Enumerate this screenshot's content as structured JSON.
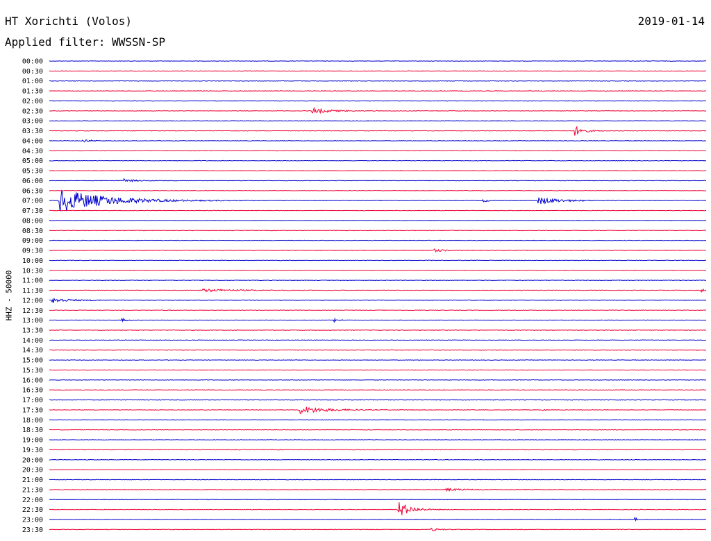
{
  "header": {
    "station": "HT Xorichti (Volos)",
    "date": "2019-01-14",
    "filter": "Applied filter: WWSSN-SP"
  },
  "channel_label": "HHZ - 50000",
  "chart_data": {
    "type": "line",
    "title": "HT Xorichti (Volos)",
    "subtitle": "Applied filter: WWSSN-SP",
    "ylabel": "HHZ - 50000",
    "row_labels": [
      "00:00",
      "00:30",
      "01:00",
      "01:30",
      "02:00",
      "02:30",
      "03:00",
      "03:30",
      "04:00",
      "04:30",
      "05:00",
      "05:30",
      "06:00",
      "06:30",
      "07:00",
      "07:30",
      "08:00",
      "08:30",
      "09:00",
      "09:30",
      "10:00",
      "10:30",
      "11:00",
      "11:30",
      "12:00",
      "12:30",
      "13:00",
      "13:30",
      "14:00",
      "14:30",
      "15:00",
      "15:30",
      "16:00",
      "16:30",
      "17:00",
      "17:30",
      "18:00",
      "18:30",
      "19:00",
      "19:30",
      "20:00",
      "20:30",
      "21:00",
      "21:30",
      "22:00",
      "22:30",
      "23:00",
      "23:30"
    ],
    "x_range_minutes": [
      0,
      30
    ],
    "series_colors": [
      "#0000cc",
      "#ee0033"
    ],
    "events": [
      {
        "row": "02:30",
        "t": 12.0,
        "amp": 0.55,
        "dur": 1.2
      },
      {
        "row": "03:30",
        "t": 24.0,
        "amp": 0.9,
        "dur": 0.6
      },
      {
        "row": "04:00",
        "t": 1.5,
        "amp": 0.4,
        "dur": 0.5
      },
      {
        "row": "06:00",
        "t": 3.4,
        "amp": 0.3,
        "dur": 0.8
      },
      {
        "row": "07:00",
        "t": 0.4,
        "amp": 2.3,
        "dur": 3.2
      },
      {
        "row": "07:00",
        "t": 22.3,
        "amp": 0.7,
        "dur": 1.5
      },
      {
        "row": "07:00",
        "t": 19.8,
        "amp": 0.35,
        "dur": 0.3
      },
      {
        "row": "09:30",
        "t": 17.5,
        "amp": 0.3,
        "dur": 0.8
      },
      {
        "row": "11:30",
        "t": 7.0,
        "amp": 0.25,
        "dur": 2.5
      },
      {
        "row": "11:30",
        "t": 29.7,
        "amp": 0.45,
        "dur": 0.3
      },
      {
        "row": "12:00",
        "t": 0.1,
        "amp": 0.5,
        "dur": 1.2
      },
      {
        "row": "13:00",
        "t": 3.3,
        "amp": 0.35,
        "dur": 0.3
      },
      {
        "row": "13:00",
        "t": 13.0,
        "amp": 0.3,
        "dur": 0.4
      },
      {
        "row": "17:30",
        "t": 11.4,
        "amp": 0.75,
        "dur": 1.8
      },
      {
        "row": "17:30",
        "t": 22.5,
        "amp": 0.25,
        "dur": 0.2
      },
      {
        "row": "21:30",
        "t": 18.1,
        "amp": 0.25,
        "dur": 1.2
      },
      {
        "row": "22:30",
        "t": 15.9,
        "amp": 1.7,
        "dur": 0.8
      },
      {
        "row": "23:00",
        "t": 26.7,
        "amp": 0.5,
        "dur": 0.2
      },
      {
        "row": "23:30",
        "t": 17.4,
        "amp": 0.3,
        "dur": 0.6
      }
    ]
  }
}
